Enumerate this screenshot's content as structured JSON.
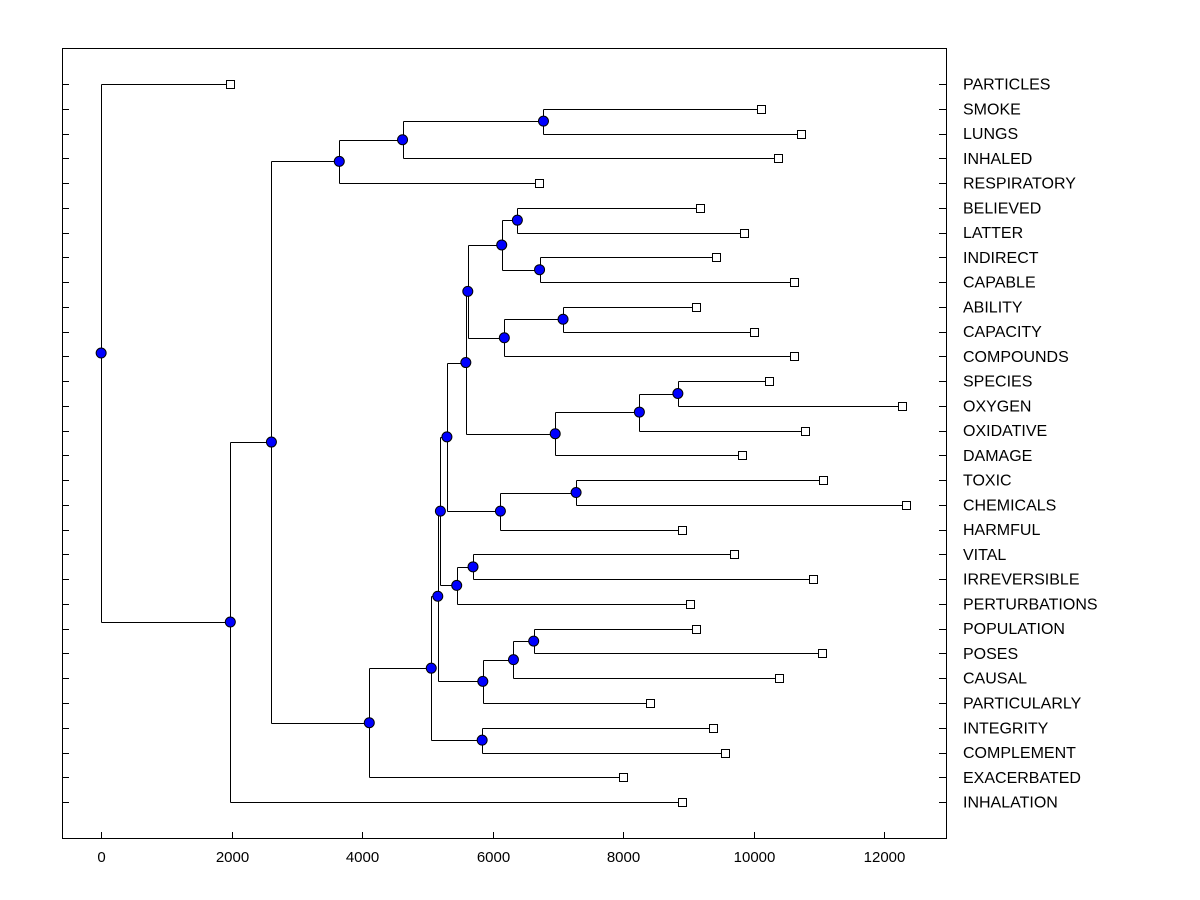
{
  "chart_data": {
    "type": "dendrogram",
    "title": "",
    "xlabel": "",
    "ylabel": "",
    "xlim": [
      -600,
      12950
    ],
    "xticks": [
      0,
      2000,
      4000,
      6000,
      8000,
      10000,
      12000
    ],
    "grid": false,
    "legend": "none",
    "colors": {
      "node": "#0000ff",
      "leaf": "#ffffff",
      "line": "#000000"
    },
    "leaves": [
      {
        "label": "PARTICLES",
        "x": 1970
      },
      {
        "label": "SMOKE",
        "x": 10120
      },
      {
        "label": "LUNGS",
        "x": 10730
      },
      {
        "label": "INHALED",
        "x": 10380
      },
      {
        "label": "RESPIRATORY",
        "x": 6710
      },
      {
        "label": "BELIEVED",
        "x": 9180
      },
      {
        "label": "LATTER",
        "x": 9850
      },
      {
        "label": "INDIRECT",
        "x": 9420
      },
      {
        "label": "CAPABLE",
        "x": 10620
      },
      {
        "label": "ABILITY",
        "x": 9120
      },
      {
        "label": "CAPACITY",
        "x": 10000
      },
      {
        "label": "COMPOUNDS",
        "x": 10620
      },
      {
        "label": "SPECIES",
        "x": 10240
      },
      {
        "label": "OXYGEN",
        "x": 12270
      },
      {
        "label": "OXIDATIVE",
        "x": 10790
      },
      {
        "label": "DAMAGE",
        "x": 9830
      },
      {
        "label": "TOXIC",
        "x": 11070
      },
      {
        "label": "CHEMICALS",
        "x": 12340
      },
      {
        "label": "HARMFUL",
        "x": 8900
      },
      {
        "label": "VITAL",
        "x": 9700
      },
      {
        "label": "IRREVERSIBLE",
        "x": 10910
      },
      {
        "label": "PERTURBATIONS",
        "x": 9030
      },
      {
        "label": "POPULATION",
        "x": 9120
      },
      {
        "label": "POSES",
        "x": 11050
      },
      {
        "label": "CAUSAL",
        "x": 10390
      },
      {
        "label": "PARTICULARLY",
        "x": 8420
      },
      {
        "label": "INTEGRITY",
        "x": 9380
      },
      {
        "label": "COMPLEMENT",
        "x": 9570
      },
      {
        "label": "EXACERBATED",
        "x": 8000
      },
      {
        "label": "INHALATION",
        "x": 8900
      }
    ],
    "merges": [
      {
        "id": "n1",
        "x": 6780,
        "children": [
          "SMOKE",
          "LUNGS"
        ]
      },
      {
        "id": "n2",
        "x": 4620,
        "children": [
          "n1",
          "INHALED"
        ]
      },
      {
        "id": "n3",
        "x": 3650,
        "children": [
          "n2",
          "RESPIRATORY"
        ]
      },
      {
        "id": "n4",
        "x": 6380,
        "children": [
          "BELIEVED",
          "LATTER"
        ]
      },
      {
        "id": "n5",
        "x": 6720,
        "children": [
          "INDIRECT",
          "CAPABLE"
        ]
      },
      {
        "id": "n6",
        "x": 6140,
        "children": [
          "n4",
          "n5"
        ]
      },
      {
        "id": "n7",
        "x": 7080,
        "children": [
          "ABILITY",
          "CAPACITY"
        ]
      },
      {
        "id": "n8",
        "x": 6180,
        "children": [
          "n7",
          "COMPOUNDS"
        ]
      },
      {
        "id": "n9",
        "x": 5620,
        "children": [
          "n6",
          "n8"
        ]
      },
      {
        "id": "n10",
        "x": 8840,
        "children": [
          "SPECIES",
          "OXYGEN"
        ]
      },
      {
        "id": "n11",
        "x": 8250,
        "children": [
          "n10",
          "OXIDATIVE"
        ]
      },
      {
        "id": "n12",
        "x": 6960,
        "children": [
          "n11",
          "DAMAGE"
        ]
      },
      {
        "id": "n13",
        "x": 5590,
        "children": [
          "n9",
          "n12"
        ]
      },
      {
        "id": "n14",
        "x": 7280,
        "children": [
          "TOXIC",
          "CHEMICALS"
        ]
      },
      {
        "id": "n15",
        "x": 6120,
        "children": [
          "n14",
          "HARMFUL"
        ]
      },
      {
        "id": "n16",
        "x": 5300,
        "children": [
          "n13",
          "n15"
        ]
      },
      {
        "id": "n17",
        "x": 5700,
        "children": [
          "VITAL",
          "IRREVERSIBLE"
        ]
      },
      {
        "id": "n18",
        "x": 5450,
        "children": [
          "n17",
          "PERTURBATIONS"
        ]
      },
      {
        "id": "n19",
        "x": 5200,
        "children": [
          "n16",
          "n18"
        ]
      },
      {
        "id": "n20",
        "x": 6630,
        "children": [
          "POPULATION",
          "POSES"
        ]
      },
      {
        "id": "n21",
        "x": 6320,
        "children": [
          "n20",
          "CAUSAL"
        ]
      },
      {
        "id": "n22",
        "x": 5850,
        "children": [
          "n21",
          "PARTICULARLY"
        ]
      },
      {
        "id": "n23",
        "x": 5160,
        "children": [
          "n19",
          "n22"
        ]
      },
      {
        "id": "n24",
        "x": 5840,
        "children": [
          "INTEGRITY",
          "COMPLEMENT"
        ]
      },
      {
        "id": "n25",
        "x": 5060,
        "children": [
          "n23",
          "n24"
        ]
      },
      {
        "id": "n26",
        "x": 4110,
        "children": [
          "n25",
          "EXACERBATED"
        ]
      },
      {
        "id": "n27",
        "x": 2610,
        "children": [
          "n3",
          "n26"
        ]
      },
      {
        "id": "n28",
        "x": 1980,
        "children": [
          "n27",
          "INHALATION"
        ]
      },
      {
        "id": "n29",
        "x": 0,
        "children": [
          "PARTICLES",
          "n28"
        ]
      }
    ]
  }
}
